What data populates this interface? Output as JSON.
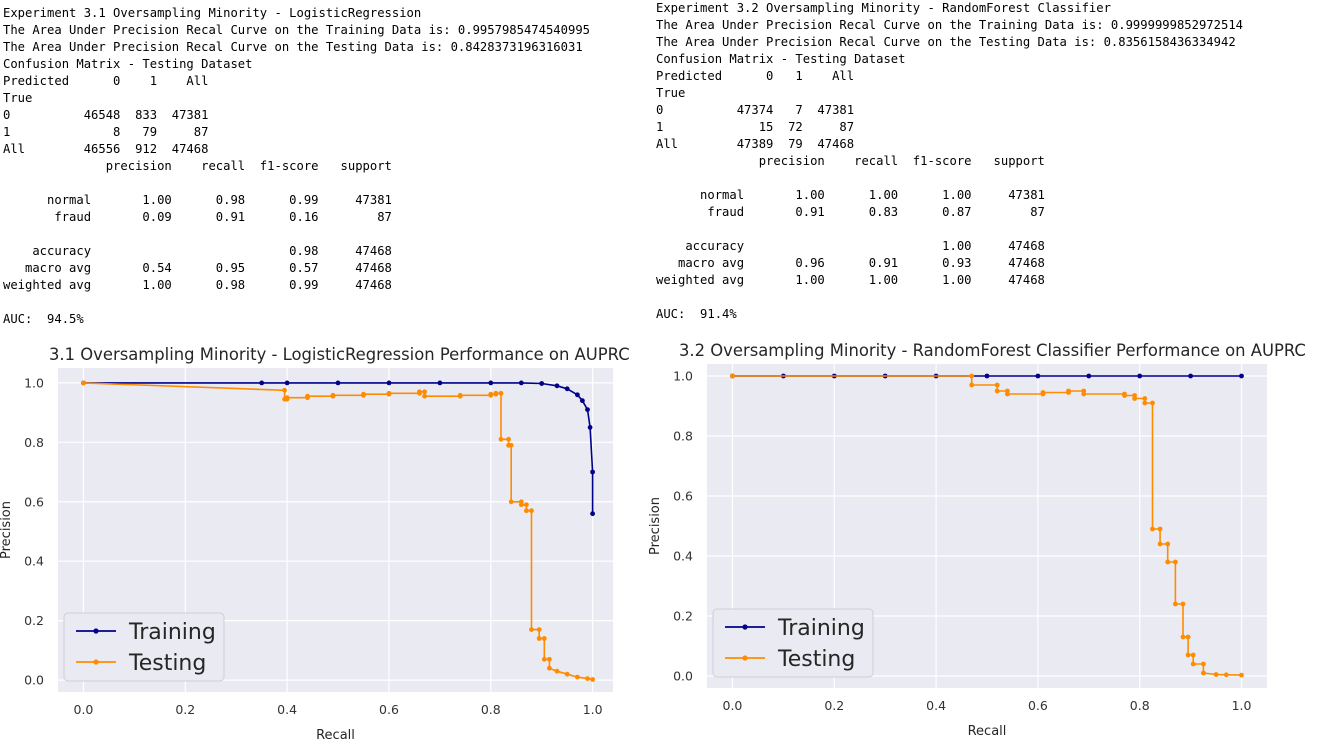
{
  "left": {
    "output_lines": [
      "Experiment 3.1 Oversampling Minority - LogisticRegression",
      "The Area Under Precision Recal Curve on the Training Data is: 0.9957985474540995",
      "The Area Under Precision Recal Curve on the Testing Data is: 0.8428373196316031",
      "Confusion Matrix - Testing Dataset",
      "Predicted      0    1    All",
      "True",
      "0          46548  833  47381",
      "1              8   79     87",
      "All        46556  912  47468",
      "              precision    recall  f1-score   support",
      "",
      "      normal       1.00      0.98      0.99     47381",
      "       fraud       0.09      0.91      0.16        87",
      "",
      "    accuracy                           0.98     47468",
      "   macro avg       0.54      0.95      0.57     47468",
      "weighted avg       1.00      0.98      0.99     47468",
      "",
      "AUC:  94.5%"
    ]
  },
  "right": {
    "output_lines": [
      "Experiment 3.2 Oversampling Minority - RandomForest Classifier",
      "The Area Under Precision Recal Curve on the Training Data is: 0.9999999852972514",
      "The Area Under Precision Recal Curve on the Testing Data is: 0.8356158436334942",
      "Confusion Matrix - Testing Dataset",
      "Predicted      0   1    All",
      "True",
      "0          47374   7  47381",
      "1             15  72     87",
      "All        47389  79  47468",
      "              precision    recall  f1-score   support",
      "",
      "      normal       1.00      1.00      1.00     47381",
      "       fraud       0.91      0.83      0.87        87",
      "",
      "    accuracy                           1.00     47468",
      "   macro avg       0.96      0.91      0.93     47468",
      "weighted avg       1.00      1.00      1.00     47468",
      "",
      "AUC:  91.4%"
    ]
  },
  "chart_data": [
    {
      "type": "line",
      "title": "3.1 Oversampling Minority - LogisticRegression Performance on AUPRC",
      "xlabel": "Recall",
      "ylabel": "Precision",
      "xlim": [
        -0.05,
        1.04
      ],
      "ylim": [
        -0.04,
        1.05
      ],
      "xticks": [
        "0.0",
        "0.2",
        "0.4",
        "0.6",
        "0.8",
        "1.0"
      ],
      "yticks": [
        "0.0",
        "0.2",
        "0.4",
        "0.6",
        "0.8",
        "1.0"
      ],
      "grid": true,
      "legend_position": "lower-left",
      "series": [
        {
          "name": "Training",
          "color": "#00008b",
          "x": [
            0.0,
            0.35,
            0.4,
            0.5,
            0.6,
            0.7,
            0.8,
            0.86,
            0.9,
            0.93,
            0.95,
            0.97,
            0.98,
            0.99,
            0.995,
            1.0,
            1.0
          ],
          "y": [
            1.0,
            1.0,
            1.0,
            1.0,
            1.0,
            1.0,
            1.0,
            1.0,
            0.998,
            0.99,
            0.98,
            0.96,
            0.94,
            0.91,
            0.85,
            0.7,
            0.56
          ]
        },
        {
          "name": "Testing",
          "color": "#ff8c00",
          "x": [
            0.0,
            0.395,
            0.395,
            0.4,
            0.4,
            0.44,
            0.44,
            0.49,
            0.49,
            0.55,
            0.55,
            0.6,
            0.6,
            0.66,
            0.66,
            0.67,
            0.67,
            0.74,
            0.74,
            0.8,
            0.8,
            0.81,
            0.81,
            0.82,
            0.82,
            0.835,
            0.835,
            0.84,
            0.84,
            0.86,
            0.86,
            0.87,
            0.87,
            0.88,
            0.88,
            0.895,
            0.895,
            0.905,
            0.905,
            0.915,
            0.915,
            0.93,
            0.95,
            0.97,
            0.99,
            1.0
          ],
          "y": [
            1.0,
            0.975,
            0.945,
            0.945,
            0.95,
            0.95,
            0.955,
            0.955,
            0.958,
            0.958,
            0.962,
            0.962,
            0.965,
            0.965,
            0.97,
            0.97,
            0.955,
            0.955,
            0.958,
            0.958,
            0.962,
            0.962,
            0.965,
            0.965,
            0.81,
            0.81,
            0.79,
            0.79,
            0.6,
            0.6,
            0.59,
            0.59,
            0.57,
            0.57,
            0.17,
            0.17,
            0.14,
            0.14,
            0.07,
            0.07,
            0.04,
            0.03,
            0.02,
            0.01,
            0.005,
            0.002
          ]
        }
      ]
    },
    {
      "type": "line",
      "title": "3.2 Oversampling Minority - RandomForest Classifier Performance on AUPRC",
      "xlabel": "Recall",
      "ylabel": "Precision",
      "xlim": [
        -0.05,
        1.05
      ],
      "ylim": [
        -0.04,
        1.04
      ],
      "xticks": [
        "0.0",
        "0.2",
        "0.4",
        "0.6",
        "0.8",
        "1.0"
      ],
      "yticks": [
        "0.0",
        "0.2",
        "0.4",
        "0.6",
        "0.8",
        "1.0"
      ],
      "grid": true,
      "legend_position": "lower-left",
      "series": [
        {
          "name": "Training",
          "color": "#00008b",
          "x": [
            0.0,
            0.1,
            0.2,
            0.3,
            0.4,
            0.5,
            0.6,
            0.7,
            0.8,
            0.9,
            1.0
          ],
          "y": [
            1.0,
            1.0,
            1.0,
            1.0,
            1.0,
            1.0,
            1.0,
            1.0,
            1.0,
            1.0,
            1.0
          ]
        },
        {
          "name": "Testing",
          "color": "#ff8c00",
          "x": [
            0.0,
            0.47,
            0.47,
            0.52,
            0.52,
            0.54,
            0.54,
            0.61,
            0.61,
            0.66,
            0.66,
            0.69,
            0.69,
            0.77,
            0.77,
            0.79,
            0.79,
            0.81,
            0.81,
            0.825,
            0.825,
            0.84,
            0.84,
            0.855,
            0.855,
            0.87,
            0.87,
            0.885,
            0.885,
            0.895,
            0.895,
            0.905,
            0.905,
            0.925,
            0.925,
            0.95,
            0.97,
            1.0
          ],
          "y": [
            1.0,
            1.0,
            0.97,
            0.97,
            0.95,
            0.95,
            0.94,
            0.94,
            0.945,
            0.945,
            0.95,
            0.95,
            0.94,
            0.94,
            0.935,
            0.935,
            0.925,
            0.925,
            0.91,
            0.91,
            0.49,
            0.49,
            0.44,
            0.44,
            0.38,
            0.38,
            0.24,
            0.24,
            0.13,
            0.13,
            0.07,
            0.07,
            0.04,
            0.04,
            0.01,
            0.005,
            0.004,
            0.003
          ]
        }
      ]
    }
  ]
}
